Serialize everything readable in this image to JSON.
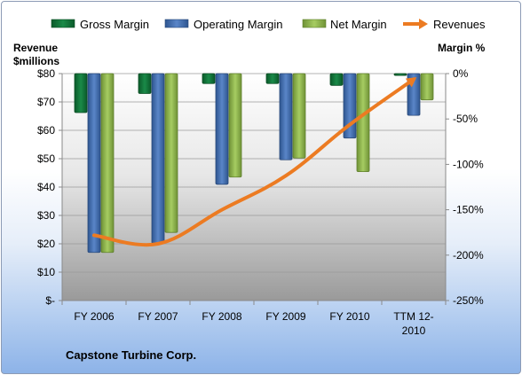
{
  "chart_data": {
    "type": "bar",
    "company": "Capstone Turbine Corp.",
    "categories": [
      "FY 2006",
      "FY 2007",
      "FY 2008",
      "FY 2009",
      "FY 2010",
      "TTM 12-2010"
    ],
    "category_lines": [
      [
        "FY 2006"
      ],
      [
        "FY 2007"
      ],
      [
        "FY 2008"
      ],
      [
        "FY 2009"
      ],
      [
        "FY 2010"
      ],
      [
        "TTM 12-",
        "2010"
      ]
    ],
    "series": [
      {
        "name": "Gross Margin",
        "axis": "right",
        "color": "#13743c",
        "values": [
          -43,
          -22,
          -11,
          -11,
          -13,
          -2
        ]
      },
      {
        "name": "Operating Margin",
        "axis": "right",
        "color": "#3f69a8",
        "values": [
          -197,
          -187,
          -122,
          -95,
          -71,
          -46
        ]
      },
      {
        "name": "Net Margin",
        "axis": "right",
        "color": "#8bb04a",
        "values": [
          -197,
          -175,
          -114,
          -93,
          -108,
          -29
        ]
      }
    ],
    "line_series": {
      "name": "Revenues",
      "axis": "left",
      "color": "#ec7b22",
      "values": [
        23,
        20,
        32,
        44,
        62,
        78
      ]
    },
    "left_axis": {
      "title_lines": [
        "Revenue",
        "$millions"
      ],
      "ylim": [
        0,
        80
      ],
      "ticks": [
        "$-",
        "$10",
        "$20",
        "$30",
        "$40",
        "$50",
        "$60",
        "$70",
        "$80"
      ]
    },
    "right_axis": {
      "title": "Margin %",
      "ylim": [
        -250,
        0
      ],
      "ticks": [
        "0%",
        "-50%",
        "-100%",
        "-150%",
        "-200%",
        "-250%"
      ]
    },
    "grid": true,
    "legend": "top"
  }
}
